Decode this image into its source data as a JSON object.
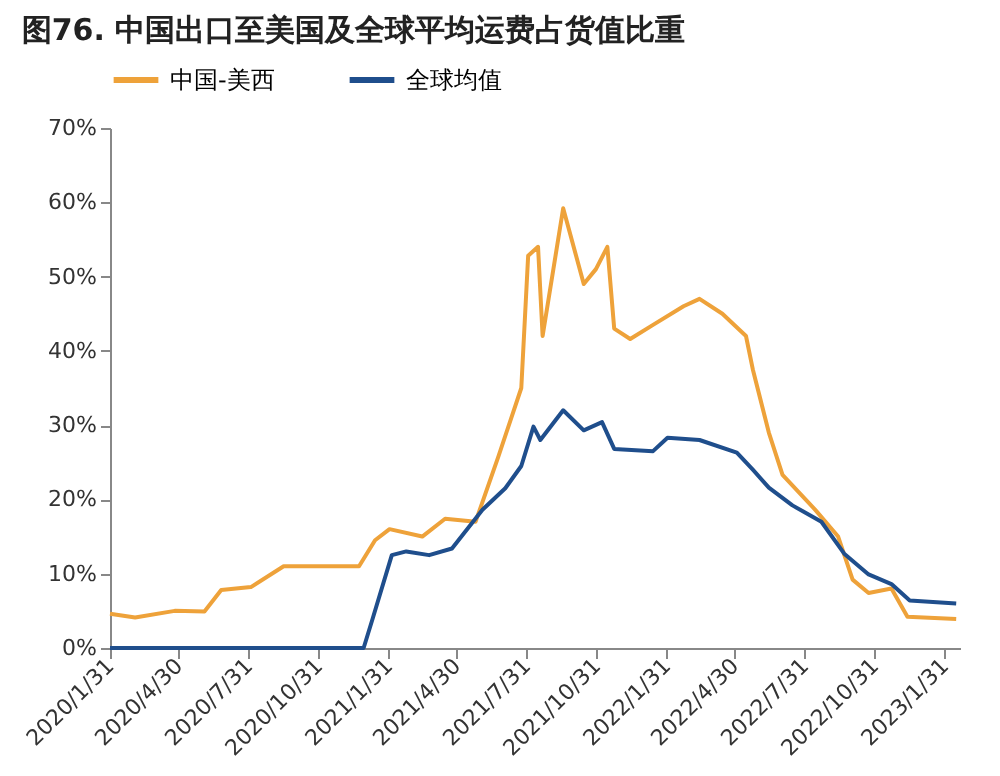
{
  "chart_data": {
    "type": "line",
    "title": "图76. 中国出口至美国及全球平均运费占货值比重",
    "xlim": [
      "2020-01-31",
      "2023-02-20"
    ],
    "xticks": [
      {
        "value": "2020-01-31",
        "label": "2020/1/31"
      },
      {
        "value": "2020-04-30",
        "label": "2020/4/30"
      },
      {
        "value": "2020-07-31",
        "label": "2020/7/31"
      },
      {
        "value": "2020-10-31",
        "label": "2020/10/31"
      },
      {
        "value": "2021-01-31",
        "label": "2021/1/31"
      },
      {
        "value": "2021-04-30",
        "label": "2021/4/30"
      },
      {
        "value": "2021-07-31",
        "label": "2021/7/31"
      },
      {
        "value": "2021-10-31",
        "label": "2021/10/31"
      },
      {
        "value": "2022-01-31",
        "label": "2022/1/31"
      },
      {
        "value": "2022-04-30",
        "label": "2022/4/30"
      },
      {
        "value": "2022-07-31",
        "label": "2022/7/31"
      },
      {
        "value": "2022-10-31",
        "label": "2022/10/31"
      },
      {
        "value": "2023-01-31",
        "label": "2023/1/31"
      }
    ],
    "ylim": [
      0,
      70
    ],
    "yticks": [
      {
        "value": 0,
        "label": "0%"
      },
      {
        "value": 10,
        "label": "10%"
      },
      {
        "value": 20,
        "label": "20%"
      },
      {
        "value": 30,
        "label": "30%"
      },
      {
        "value": 40,
        "label": "40%"
      },
      {
        "value": 50,
        "label": "50%"
      },
      {
        "value": 60,
        "label": "60%"
      },
      {
        "value": 70,
        "label": "70%"
      }
    ],
    "grid": false,
    "legend": "top",
    "line_style": "solid",
    "marker": "none",
    "series": [
      {
        "name": "中国-美西",
        "color": "#eea23a",
        "x": [
          "2020-01-31",
          "2020-03-04",
          "2020-04-25",
          "2020-06-03",
          "2020-06-25",
          "2020-08-03",
          "2020-09-15",
          "2020-12-23",
          "2021-01-13",
          "2021-02-01",
          "2021-03-16",
          "2021-04-15",
          "2021-05-25",
          "2021-06-24",
          "2021-07-24",
          "2021-08-02",
          "2021-08-15",
          "2021-08-21",
          "2021-09-17",
          "2021-10-14",
          "2021-10-30",
          "2021-11-14",
          "2021-11-23",
          "2021-12-14",
          "2022-01-13",
          "2022-02-22",
          "2022-03-15",
          "2022-04-14",
          "2022-05-15",
          "2022-05-24",
          "2022-06-14",
          "2022-07-02",
          "2022-08-14",
          "2022-09-13",
          "2022-10-02",
          "2022-10-23",
          "2022-11-22",
          "2022-12-13",
          "2023-02-15"
        ],
        "values": [
          4.6,
          4.1,
          5.0,
          4.9,
          7.8,
          8.2,
          11,
          11,
          14.5,
          16,
          15,
          17.4,
          17,
          25.8,
          35,
          52.8,
          54,
          42,
          59.2,
          49,
          51,
          54,
          43,
          41.6,
          43.5,
          46,
          47,
          45,
          42,
          37.5,
          29,
          23.3,
          18.6,
          15,
          9.2,
          7.4,
          8,
          4.2,
          3.9
        ]
      },
      {
        "name": "全球均值",
        "color": "#1f4e8c",
        "x": [
          "2020-01-31",
          "2020-12-29",
          "2021-01-10",
          "2021-02-04",
          "2021-02-23",
          "2021-03-25",
          "2021-04-24",
          "2021-06-03",
          "2021-07-03",
          "2021-07-24",
          "2021-08-09",
          "2021-08-18",
          "2021-09-17",
          "2021-10-14",
          "2021-11-07",
          "2021-11-23",
          "2022-01-13",
          "2022-02-01",
          "2022-03-15",
          "2022-05-03",
          "2022-05-24",
          "2022-06-14",
          "2022-07-15",
          "2022-08-22",
          "2022-09-21",
          "2022-10-23",
          "2022-11-22",
          "2022-12-16",
          "2023-02-15"
        ],
        "values": [
          0,
          0,
          4,
          12.5,
          13,
          12.5,
          13.4,
          18.6,
          21.5,
          24.5,
          29.8,
          28,
          32,
          29.3,
          30.4,
          26.8,
          26.5,
          28.3,
          28,
          26.3,
          24,
          21.6,
          19.2,
          17,
          12.7,
          9.9,
          8.6,
          6.4,
          6
        ]
      }
    ]
  }
}
